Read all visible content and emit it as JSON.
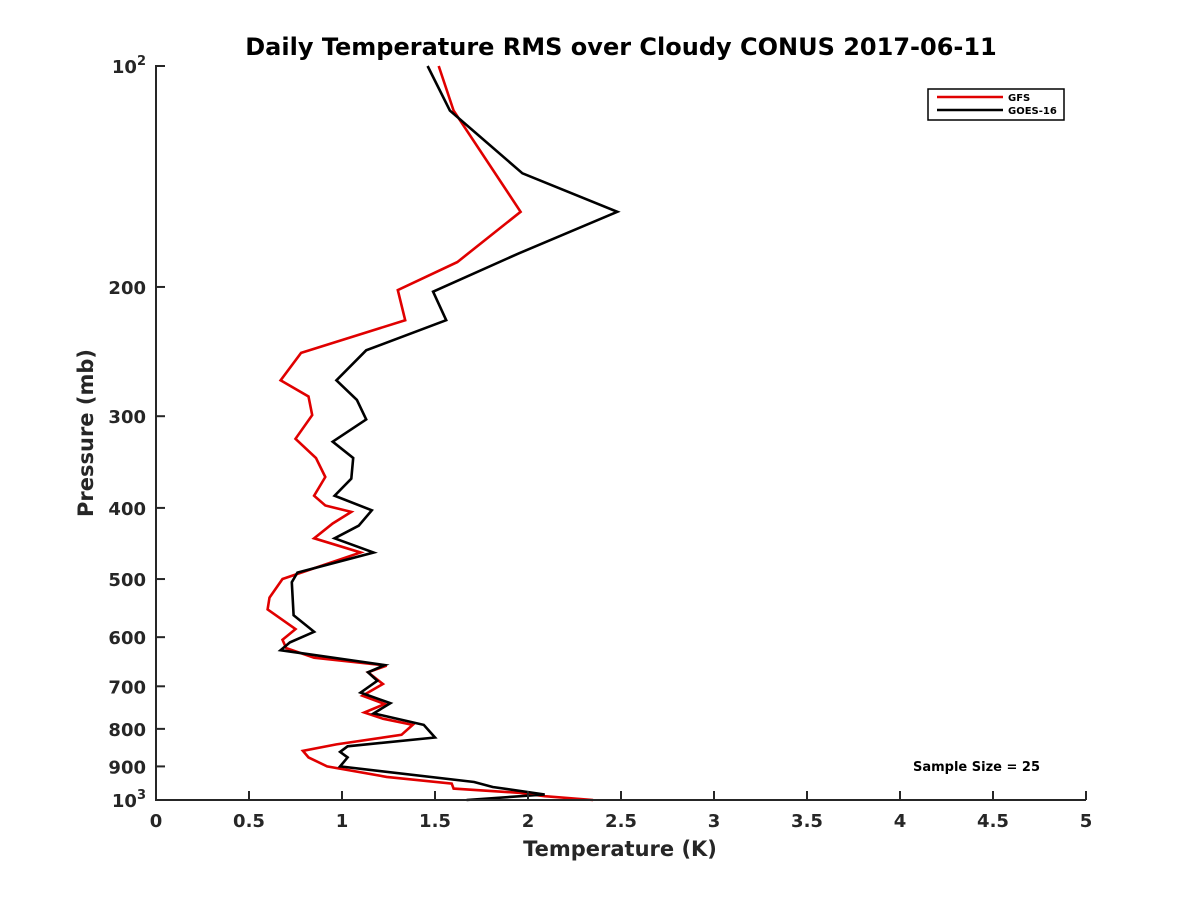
{
  "chart_data": {
    "type": "line",
    "title": "Daily Temperature RMS over Cloudy CONUS 2017-06-11",
    "xlabel": "Temperature (K)",
    "ylabel": "Pressure (mb)",
    "xlim": [
      0,
      5
    ],
    "ylim": [
      100,
      1000
    ],
    "y_scale": "log",
    "y_reversed": true,
    "grid": false,
    "legend_position": "top-right",
    "x_ticks": [
      "0",
      "0.5",
      "1",
      "1.5",
      "2",
      "2.5",
      "3",
      "3.5",
      "4",
      "4.5",
      "5"
    ],
    "y_ticks": [
      {
        "value": 100,
        "base": "10",
        "exp": "2"
      },
      {
        "value": 200,
        "label": "200"
      },
      {
        "value": 300,
        "label": "300"
      },
      {
        "value": 400,
        "label": "400"
      },
      {
        "value": 500,
        "label": "500"
      },
      {
        "value": 600,
        "label": "600"
      },
      {
        "value": 700,
        "label": "700"
      },
      {
        "value": 800,
        "label": "800"
      },
      {
        "value": 900,
        "label": "900"
      },
      {
        "value": 1000,
        "base": "10",
        "exp": "3"
      }
    ],
    "annotation": "Sample Size = 25",
    "series": [
      {
        "name": "GFS",
        "color": "#e00000",
        "points": [
          [
            1.52,
            100
          ],
          [
            1.6,
            115
          ],
          [
            1.96,
            158
          ],
          [
            1.62,
            185
          ],
          [
            1.3,
            202
          ],
          [
            1.34,
            222
          ],
          [
            0.78,
            246
          ],
          [
            0.67,
            268
          ],
          [
            0.82,
            282
          ],
          [
            0.84,
            299
          ],
          [
            0.75,
            322
          ],
          [
            0.86,
            342
          ],
          [
            0.91,
            363
          ],
          [
            0.85,
            385
          ],
          [
            0.91,
            397
          ],
          [
            1.05,
            405
          ],
          [
            0.95,
            420
          ],
          [
            0.85,
            440
          ],
          [
            1.1,
            460
          ],
          [
            0.68,
            500
          ],
          [
            0.61,
            530
          ],
          [
            0.6,
            550
          ],
          [
            0.75,
            585
          ],
          [
            0.68,
            605
          ],
          [
            0.7,
            621
          ],
          [
            0.85,
            640
          ],
          [
            1.24,
            656
          ],
          [
            1.14,
            670
          ],
          [
            1.22,
            695
          ],
          [
            1.11,
            721
          ],
          [
            1.23,
            740
          ],
          [
            1.12,
            760
          ],
          [
            1.22,
            775
          ],
          [
            1.38,
            790
          ],
          [
            1.32,
            815
          ],
          [
            0.97,
            840
          ],
          [
            0.79,
            857
          ],
          [
            0.82,
            875
          ],
          [
            0.92,
            900
          ],
          [
            1.24,
            930
          ],
          [
            1.59,
            950
          ],
          [
            1.6,
            965
          ],
          [
            1.96,
            978
          ],
          [
            2.09,
            988
          ],
          [
            2.35,
            1000
          ]
        ]
      },
      {
        "name": "GOES-16",
        "color": "#000000",
        "points": [
          [
            1.46,
            100
          ],
          [
            1.58,
            115
          ],
          [
            1.97,
            140
          ],
          [
            2.48,
            158
          ],
          [
            1.95,
            180
          ],
          [
            1.49,
            203
          ],
          [
            1.56,
            222
          ],
          [
            1.13,
            244
          ],
          [
            0.97,
            268
          ],
          [
            1.08,
            285
          ],
          [
            1.13,
            303
          ],
          [
            0.95,
            325
          ],
          [
            1.06,
            342
          ],
          [
            1.05,
            365
          ],
          [
            0.96,
            385
          ],
          [
            1.16,
            403
          ],
          [
            1.09,
            423
          ],
          [
            0.96,
            440
          ],
          [
            1.17,
            460
          ],
          [
            0.76,
            490
          ],
          [
            0.73,
            505
          ],
          [
            0.74,
            560
          ],
          [
            0.85,
            590
          ],
          [
            0.72,
            610
          ],
          [
            0.67,
            625
          ],
          [
            1.23,
            655
          ],
          [
            1.14,
            670
          ],
          [
            1.19,
            688
          ],
          [
            1.1,
            714
          ],
          [
            1.26,
            738
          ],
          [
            1.17,
            762
          ],
          [
            1.44,
            790
          ],
          [
            1.5,
            822
          ],
          [
            1.03,
            845
          ],
          [
            0.99,
            860
          ],
          [
            1.03,
            875
          ],
          [
            0.99,
            900
          ],
          [
            1.71,
            945
          ],
          [
            1.81,
            960
          ],
          [
            2.09,
            983
          ],
          [
            1.67,
            1000
          ]
        ]
      }
    ]
  }
}
